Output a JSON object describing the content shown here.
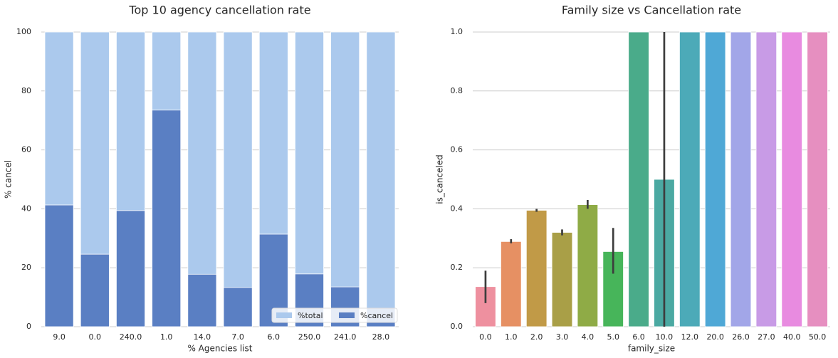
{
  "chart_data": [
    {
      "type": "bar",
      "title": "Top 10 agency cancellation rate",
      "xlabel": "% Agencies list",
      "ylabel": "% cancel",
      "categories": [
        "9.0",
        "0.0",
        "240.0",
        "1.0",
        "14.0",
        "7.0",
        "6.0",
        "250.0",
        "241.0",
        "28.0"
      ],
      "series": [
        {
          "name": "%total",
          "color": "#abc9ed",
          "values": [
            100,
            100,
            100,
            100,
            100,
            100,
            100,
            100,
            100,
            100
          ]
        },
        {
          "name": "%cancel",
          "color": "#5a7fc3",
          "values": [
            41.3,
            24.6,
            39.4,
            73.5,
            17.8,
            13.3,
            31.4,
            17.9,
            13.5,
            6.3
          ]
        }
      ],
      "ylim": [
        0,
        100
      ],
      "yticks": [
        0,
        20,
        40,
        60,
        80,
        100
      ],
      "grid": true,
      "legend": "lower right"
    },
    {
      "type": "bar",
      "title": "Family size vs Cancellation rate",
      "xlabel": "family_size",
      "ylabel": "is_canceled",
      "categories": [
        "0.0",
        "1.0",
        "2.0",
        "3.0",
        "4.0",
        "5.0",
        "6.0",
        "10.0",
        "12.0",
        "20.0",
        "26.0",
        "27.0",
        "40.0",
        "50.0"
      ],
      "values": [
        0.136,
        0.289,
        0.395,
        0.32,
        0.414,
        0.255,
        1.0,
        0.5,
        1.0,
        1.0,
        1.0,
        1.0,
        1.0,
        1.0
      ],
      "ci_low": [
        0.08,
        0.283,
        0.39,
        0.31,
        0.4,
        0.18,
        null,
        0,
        null,
        null,
        null,
        null,
        null,
        null
      ],
      "ci_high": [
        0.19,
        0.297,
        0.4,
        0.33,
        0.43,
        0.335,
        null,
        1.0,
        null,
        null,
        null,
        null,
        null,
        null
      ],
      "colors": [
        "#ee909f",
        "#e69063",
        "#c19a47",
        "#a99f47",
        "#8fab46",
        "#47b55a",
        "#4aab8a",
        "#4ba9a2",
        "#4caab8",
        "#4fa8d6",
        "#a2a6e8",
        "#c89be6",
        "#e88be0",
        "#e68fc0"
      ],
      "ylim": [
        0,
        1
      ],
      "yticks": [
        {
          "value": 0,
          "label": "0.0"
        },
        {
          "value": 0.2,
          "label": "0.2"
        },
        {
          "value": 0.4,
          "label": "0.4"
        },
        {
          "value": 0.6,
          "label": "0.6"
        },
        {
          "value": 0.8,
          "label": "0.8"
        },
        {
          "value": 1,
          "label": "1.0"
        }
      ],
      "grid": true
    }
  ]
}
